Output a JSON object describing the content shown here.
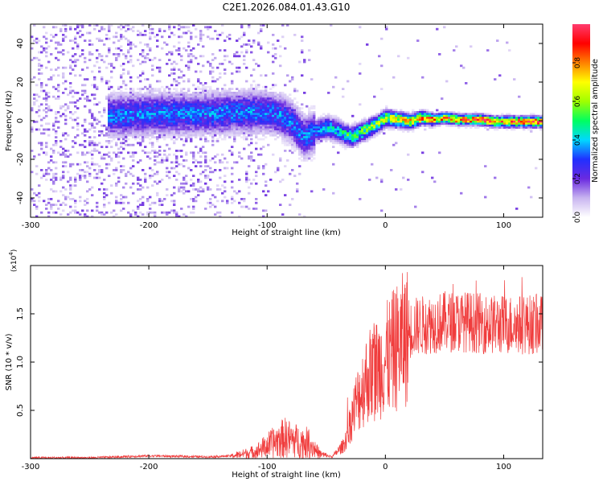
{
  "figure_title": "C2E1.2026.084.01.43.G10",
  "chart_data": [
    {
      "type": "heatmap",
      "title": "C2E1.2026.084.01.43.G10",
      "xlabel": "Height of straight line (km)",
      "ylabel": "Frequency (Hz)",
      "xlim": [
        -300,
        133
      ],
      "ylim": [
        -50,
        50
      ],
      "xticks": [
        -300,
        -200,
        -100,
        0,
        100
      ],
      "yticks": [
        -40,
        -20,
        0,
        20,
        40
      ],
      "colorbar": {
        "label": "Normalized spectral amplitude",
        "range": [
          0,
          1
        ],
        "ticks": [
          0.0,
          0.2,
          0.4,
          0.6,
          0.8
        ],
        "tick_labels": [
          "0.0",
          "0.2",
          "0.4",
          "0.6",
          "0.8"
        ],
        "colormap": [
          "#ffffff",
          "#c8b4f0",
          "#6a2ae0",
          "#2030ff",
          "#00d8ff",
          "#00ff60",
          "#a0ff00",
          "#ffff00",
          "#ff8000",
          "#ff0000",
          "#ff3c6e"
        ]
      },
      "ridge_frequency": {
        "x": [
          -225,
          -200,
          -175,
          -150,
          -125,
          -100,
          -90,
          -80,
          -70,
          -60,
          -50,
          -40,
          -30,
          -20,
          -10,
          0,
          10,
          20,
          30,
          40,
          50,
          60,
          70,
          80,
          90,
          100,
          110,
          120,
          133
        ],
        "y": [
          3,
          4,
          4,
          4,
          5,
          5,
          3,
          0,
          -8,
          -5,
          -3,
          -5,
          -8,
          -5,
          -2,
          2,
          1,
          0,
          2,
          1,
          2,
          1,
          1,
          1,
          0,
          0,
          0,
          0,
          0
        ]
      }
    },
    {
      "type": "line",
      "xlabel": "Height of straight line (km)",
      "ylabel": "SNR (10 * v/v)",
      "yscale_label": "(x10",
      "yscale_exponent": "4",
      "xlim": [
        -300,
        133
      ],
      "ylim": [
        0,
        2.0
      ],
      "xticks": [
        -300,
        -200,
        -100,
        0,
        100
      ],
      "yticks": [
        0.5,
        1.0,
        1.5
      ],
      "ytick_labels": [
        "0.5",
        "1.0",
        "1.5"
      ],
      "color": "#f03c3c",
      "envelope": {
        "x": [
          -300,
          -250,
          -200,
          -150,
          -130,
          -110,
          -95,
          -85,
          -75,
          -65,
          -55,
          -45,
          -35,
          -25,
          -15,
          -5,
          5,
          15,
          25,
          35,
          50,
          70,
          90,
          110,
          133
        ],
        "y": [
          0.01,
          0.01,
          0.03,
          0.02,
          0.03,
          0.08,
          0.18,
          0.24,
          0.2,
          0.18,
          0.05,
          0.02,
          0.15,
          0.6,
          0.9,
          1.0,
          1.15,
          1.3,
          1.4,
          1.42,
          1.45,
          1.45,
          1.42,
          1.42,
          1.42
        ]
      }
    }
  ]
}
